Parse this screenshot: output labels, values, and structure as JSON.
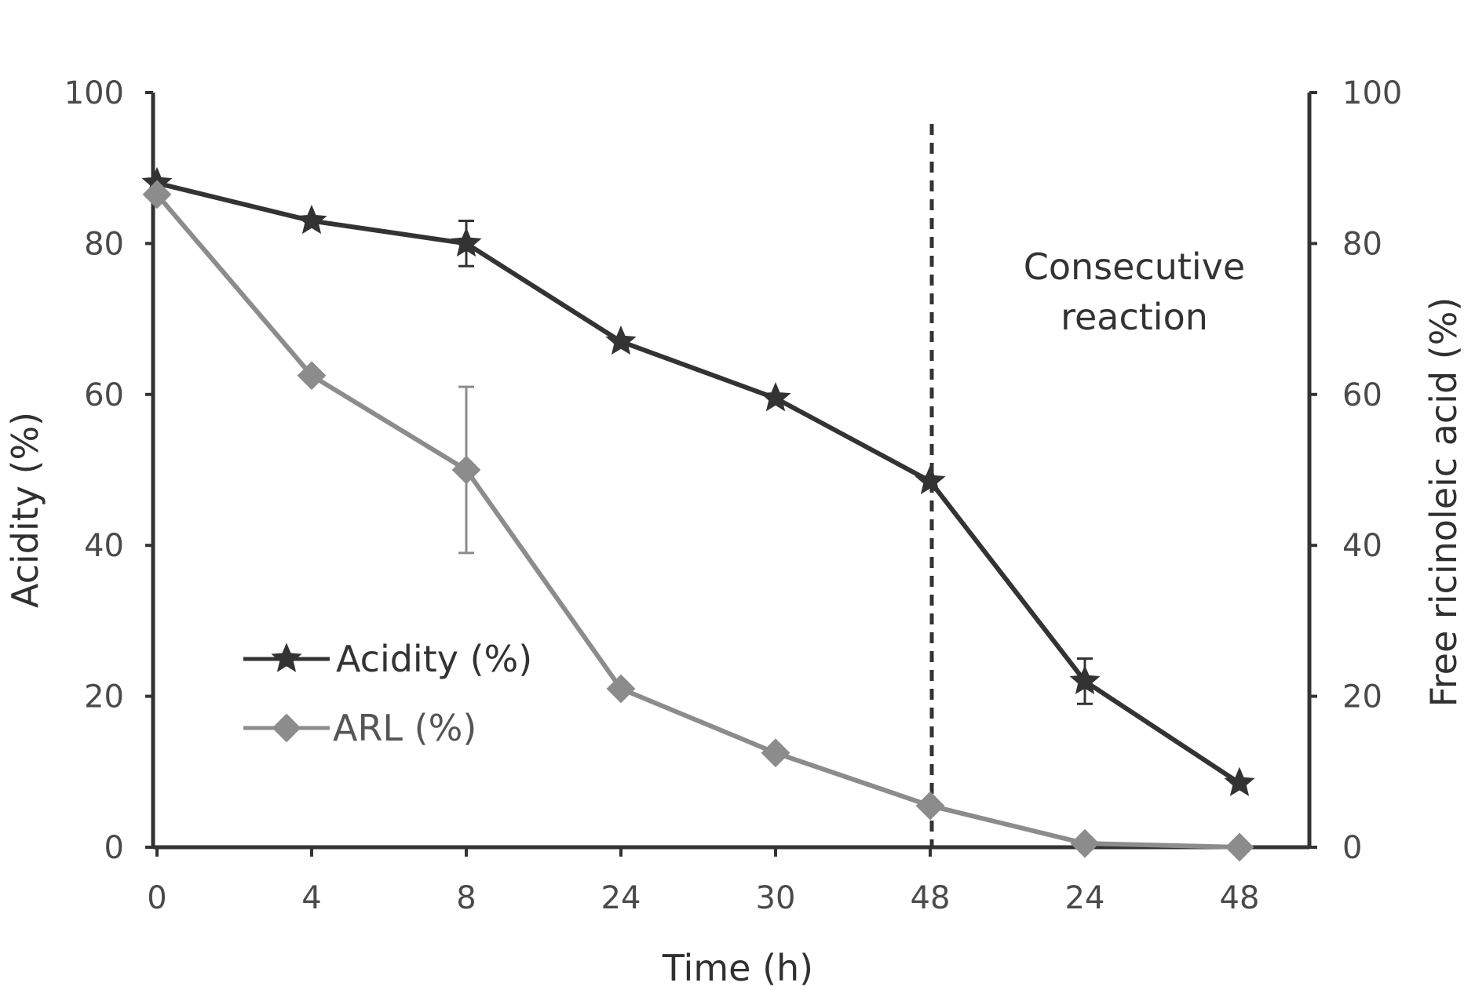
{
  "chart_data": {
    "type": "line",
    "categories": [
      "0",
      "4",
      "8",
      "24",
      "30",
      "48",
      "24",
      "48"
    ],
    "xlabel": "Time (h)",
    "ylabel": "Acidity (%)",
    "y2label": "Free ricinoleic acid (%)",
    "ylim": [
      0,
      100
    ],
    "y2lim": [
      0,
      100
    ],
    "yticks": [
      0,
      20,
      40,
      60,
      80,
      100
    ],
    "grid": false,
    "legend_position": "lower-left",
    "annotation": {
      "line1": "Consecutive",
      "line2": "reaction",
      "after_category_index": 5
    },
    "series": [
      {
        "name": "Acidity (%)",
        "axis": "left",
        "marker": "star",
        "color": "#333333",
        "values": [
          88,
          83,
          80,
          67,
          59.5,
          48.5,
          22,
          8.5
        ],
        "error": [
          0,
          0,
          3,
          0,
          0,
          0,
          3,
          0
        ]
      },
      {
        "name": "ARL (%)",
        "axis": "right",
        "marker": "diamond",
        "color": "#8c8c8c",
        "values": [
          86.5,
          62.5,
          50,
          21,
          12.5,
          5.5,
          0.5,
          0
        ],
        "error": [
          0,
          0,
          11,
          0,
          0,
          0,
          0,
          0
        ]
      }
    ]
  }
}
